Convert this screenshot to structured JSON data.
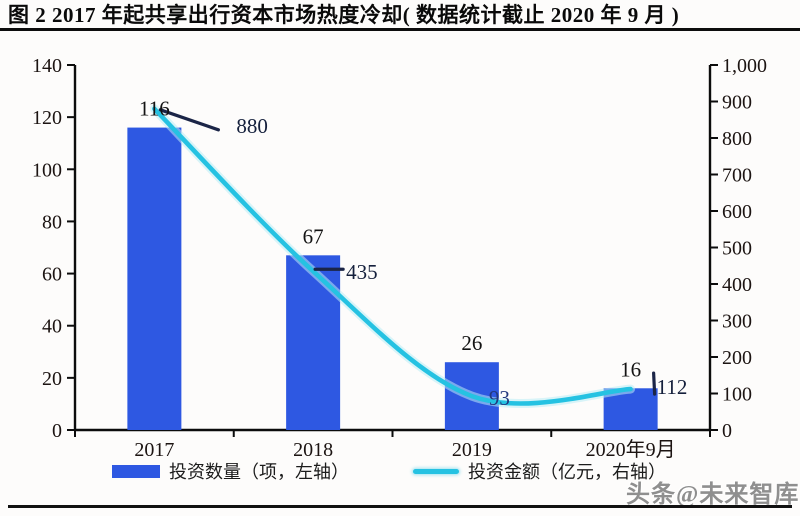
{
  "header": {
    "title": "图 2 2017 年起共享出行资本市场热度冷却( 数据统计截止 2020 年 9 月 )"
  },
  "watermark": {
    "text": "头条@未来智库"
  },
  "legend": {
    "items": [
      {
        "label": "投资数量（项，左轴）",
        "swatch": "bar"
      },
      {
        "label": "投资金额（亿元，右轴）",
        "swatch": "line"
      }
    ]
  },
  "chart_data": {
    "type": "bar",
    "subtype": "combo-bar-line",
    "title": "2017 年起共享出行资本市场热度冷却",
    "categories": [
      "2017",
      "2018",
      "2019",
      "2020年9月"
    ],
    "series": [
      {
        "name": "投资数量（项，左轴）",
        "type": "bar",
        "axis": "left",
        "values": [
          116,
          67,
          26,
          16
        ]
      },
      {
        "name": "投资金额（亿元，右轴）",
        "type": "line",
        "axis": "right",
        "values": [
          880,
          435,
          93,
          112
        ]
      }
    ],
    "left_axis": {
      "min": 0,
      "max": 140,
      "step": 20,
      "ticks": [
        "0",
        "20",
        "40",
        "60",
        "80",
        "100",
        "120",
        "140"
      ]
    },
    "right_axis": {
      "min": 0,
      "max": 1000,
      "step": 100,
      "ticks": [
        "0",
        "100",
        "200",
        "300",
        "400",
        "500",
        "600",
        "700",
        "800",
        "900",
        "1,000"
      ]
    },
    "grid": false,
    "legend_position": "bottom"
  },
  "colors": {
    "bar": "#2e58e2",
    "line": "#25c2e2",
    "line_glow": "#b9ecf6",
    "connector": "#1b2547",
    "axis": "#0c0c0c",
    "tick_label": "#1c1412",
    "bar_label": "#131313",
    "line_label": "#15203c",
    "line_label_93": "#24397e",
    "watermark": "#8f8f8f"
  }
}
